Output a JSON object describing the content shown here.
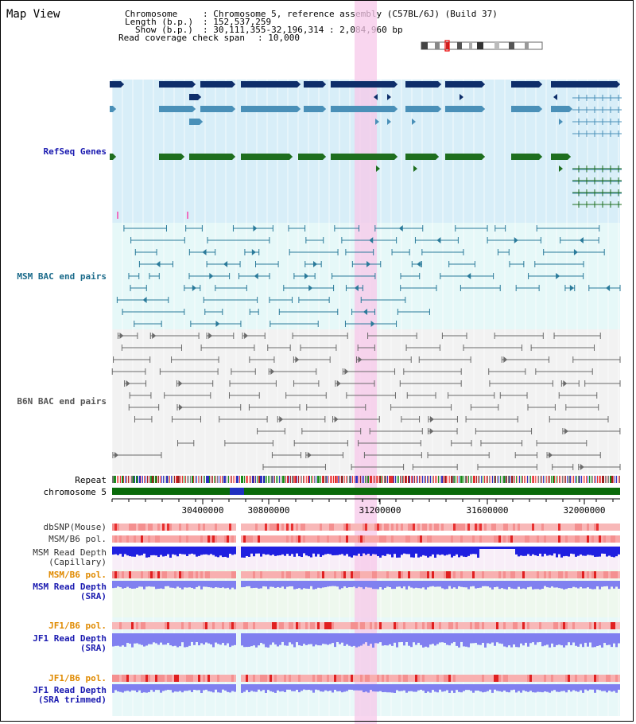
{
  "page": {
    "title": "Map View"
  },
  "header": {
    "chromosome_key": "Chromosome",
    "chromosome_value": ": Chromosome 5, reference assembly (C57BL/6J) (Build 37)",
    "length_key": "Length (b.p.)",
    "length_value": ": 152,537,259",
    "show_key": "Show (b.p.)",
    "show_value": ": 30,111,355-32,196,314 : 2,084,960 bp",
    "span_key": "Read coverage check span",
    "span_value": ": 10,000"
  },
  "tracks": {
    "refseq": "RefSeq Genes",
    "msm_bac": "MSM BAC end pairs",
    "b6n_bac": "B6N BAC end pairs",
    "repeat": "Repeat",
    "chromosome": "chromosome 5",
    "dbsnp": "dbSNP(Mouse)",
    "msm_b6_pol1": "MSM/B6 pol.",
    "msm_read_depth_cap_1": "MSM Read Depth",
    "msm_read_depth_cap_2": "(Capillary)",
    "msm_b6_pol2": "MSM/B6 pol.",
    "msm_read_depth_sra_1": "MSM Read Depth",
    "msm_read_depth_sra_2": "(SRA)",
    "jf1_b6_pol1": "JF1/B6 pol.",
    "jf1_read_depth_1": "JF1 Read Depth",
    "jf1_read_depth_2": "(SRA)",
    "jf1_b6_pol2": "JF1/B6 pol.",
    "jf1_read_depth_trim_1": "JF1 Read Depth",
    "jf1_read_depth_trim_2": "(SRA trimmed)"
  },
  "axis": {
    "ticks": [
      "30400000",
      "30800000",
      "31200000",
      "31600000",
      "32000000"
    ]
  },
  "colors": {
    "refseq_bg": "#d8eef8",
    "msm_bg": "#e6f8f8",
    "b6n_bg": "#f2f2f2",
    "highlight": "#f7c8ea",
    "gene_dark": "#0e2e6a",
    "gene_mid": "#4a90b8",
    "gene_green": "#1e6e1e",
    "msm_pair": "#2a7a9a",
    "b6n_pair": "#6a6a6a",
    "chrom_bar": "#0a6a0a",
    "depth_blue": "#2020e0",
    "depth_light": "#8080f0",
    "pol_red": "#f06060",
    "label_blue": "#1a1ab0",
    "label_teal": "#1a6a8a",
    "label_gray": "#555555",
    "label_orange": "#e08a00"
  }
}
